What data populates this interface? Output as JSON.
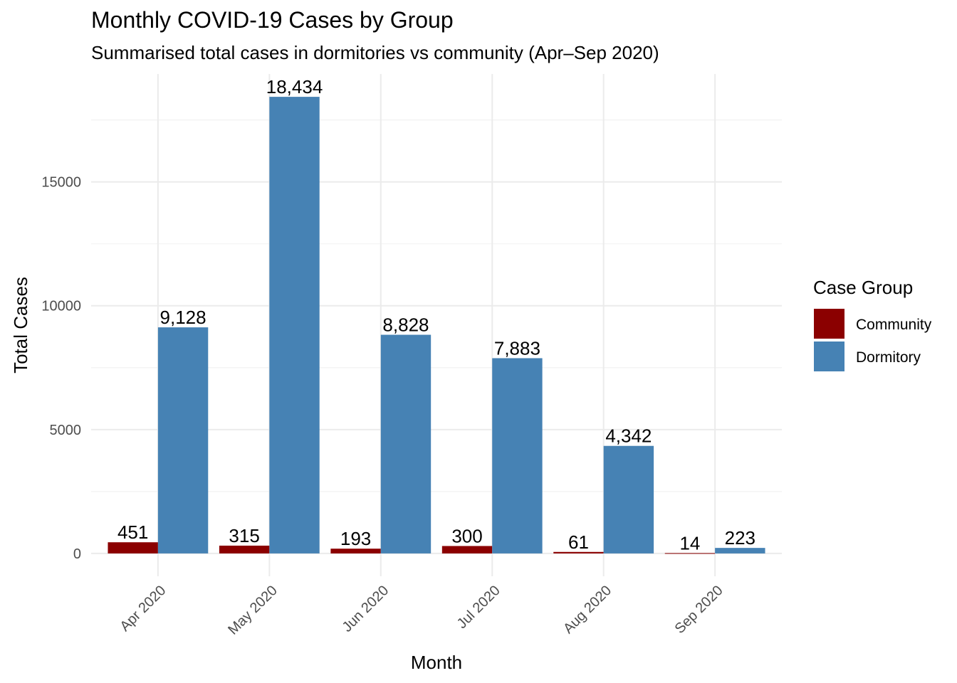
{
  "chart_data": {
    "type": "bar",
    "title": "Monthly COVID-19 Cases by Group",
    "subtitle": "Summarised total cases in dormitories vs community (Apr–Sep 2020)",
    "xlabel": "Month",
    "ylabel": "Total Cases",
    "categories": [
      "Apr 2020",
      "May 2020",
      "Jun 2020",
      "Jul 2020",
      "Aug 2020",
      "Sep 2020"
    ],
    "series": [
      {
        "name": "Community",
        "color": "#8B0000",
        "values": [
          451,
          315,
          193,
          300,
          61,
          14
        ],
        "labels": [
          "451",
          "315",
          "193",
          "300",
          "61",
          "14"
        ]
      },
      {
        "name": "Dormitory",
        "color": "#4682B4",
        "values": [
          9128,
          18434,
          8828,
          7883,
          4342,
          223
        ],
        "labels": [
          "9,128",
          "18,434",
          "8,828",
          "7,883",
          "4,342",
          "223"
        ]
      }
    ],
    "yticks": [
      0,
      5000,
      10000,
      15000
    ],
    "ytick_labels": [
      "0",
      "5000",
      "10000",
      "15000"
    ],
    "ylim": [
      -922,
      19356
    ],
    "grid": true,
    "legend": {
      "title": "Case Group",
      "position": "right"
    }
  }
}
